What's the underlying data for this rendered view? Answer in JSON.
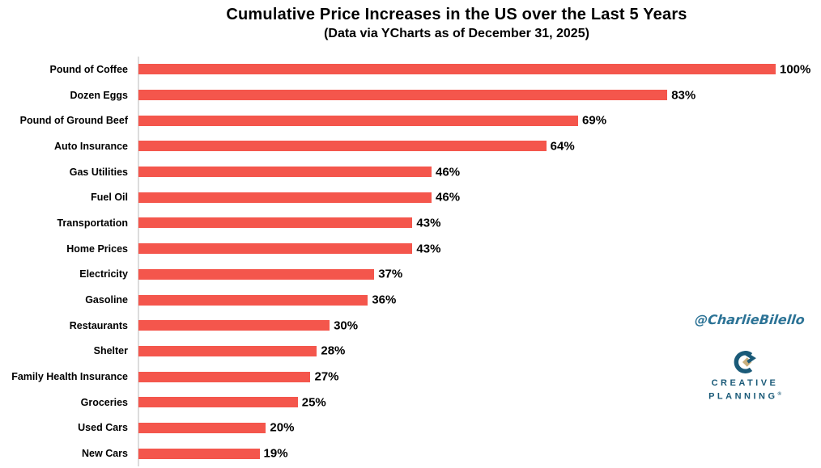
{
  "chart_data": {
    "type": "bar",
    "orientation": "horizontal",
    "title": "Cumulative Price Increases in the US over the Last 5 Years",
    "subtitle": "(Data via YCharts as of December 31, 2025)",
    "categories": [
      "Pound of Coffee",
      "Dozen Eggs",
      "Pound of Ground Beef",
      "Auto Insurance",
      "Gas Utilities",
      "Fuel Oil",
      "Transportation",
      "Home Prices",
      "Electricity",
      "Gasoline",
      "Restaurants",
      "Shelter",
      "Family Health Insurance",
      "Groceries",
      "Used Cars",
      "New Cars"
    ],
    "values": [
      100,
      83,
      69,
      64,
      46,
      46,
      43,
      43,
      37,
      36,
      30,
      28,
      27,
      25,
      20,
      19
    ],
    "value_labels": [
      "100%",
      "83%",
      "69%",
      "64%",
      "46%",
      "46%",
      "43%",
      "43%",
      "37%",
      "36%",
      "30%",
      "28%",
      "27%",
      "25%",
      "20%",
      "19%"
    ],
    "xlim": [
      0,
      100
    ],
    "grid": false,
    "legend": false,
    "bar_color": "#F4564C",
    "axis_color": "#DCDCDC",
    "text_color": "#000000"
  },
  "watermark": {
    "handle": "@CharlieBilello",
    "color": "#2C7396"
  },
  "logo": {
    "line1": "CREATIVE",
    "line2": "PLANNING",
    "trademark": "®",
    "primary_color": "#1A5A78",
    "accent_color": "#C8AF7E"
  }
}
